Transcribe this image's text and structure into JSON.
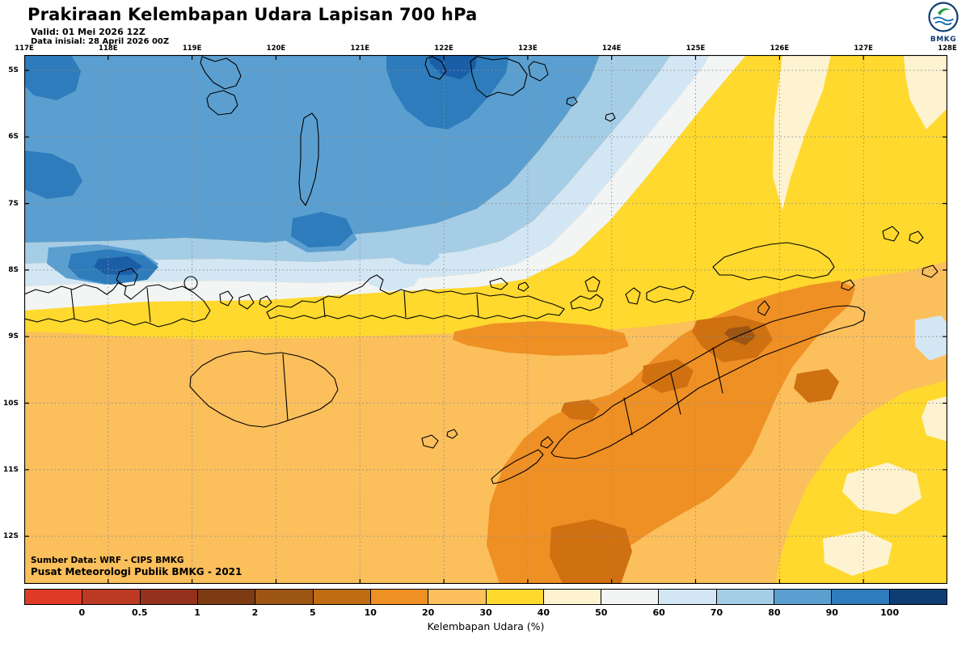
{
  "header": {
    "title": "Prakiraan Kelembapan Udara Lapisan 700 hPa",
    "valid_line": "Valid: 01 Mei 2026 12Z",
    "init_line": "Data inisial: 28 April 2026 00Z",
    "logo_text": "BMKG"
  },
  "map": {
    "lon_labels": [
      "117E",
      "118E",
      "119E",
      "120E",
      "121E",
      "122E",
      "123E",
      "124E",
      "125E",
      "126E",
      "127E",
      "128E"
    ],
    "lat_labels": [
      "5S",
      "6S",
      "7S",
      "8S",
      "9S",
      "10S",
      "11S",
      "12S"
    ],
    "source_line1": "Sumber Data: WRF - CIPS BMKG",
    "source_line2": "Pusat Meteorologi Publik BMKG - 2021"
  },
  "colorbar": {
    "label": "Kelembapan Udara (%)",
    "tick_labels": [
      "0",
      "0.5",
      "1",
      "2",
      "5",
      "10",
      "20",
      "30",
      "40",
      "50",
      "60",
      "70",
      "80",
      "90",
      "100"
    ],
    "segment_colors": [
      "#df3b26",
      "#bc3a23",
      "#93311c",
      "#7d3b12",
      "#9c5513",
      "#c06c13",
      "#ef9025",
      "#fbbf5c",
      "#ffd92e",
      "#fdf3d0",
      "#f2f5f4",
      "#d3e6f3",
      "#a6cde6",
      "#5b9fd0",
      "#2e7cbb",
      "#0d3d73"
    ]
  }
}
